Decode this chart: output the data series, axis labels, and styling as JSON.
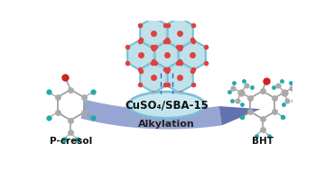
{
  "background_color": "#ffffff",
  "pcresol_label": "P-cresol",
  "bht_label": "BHT",
  "catalyst_label": "CuSO₄/SBA-15",
  "reaction_label": "Alkylation",
  "arrow_color_light": "#8899cc",
  "arrow_color_dark": "#5566aa",
  "ellipse_face": "#c5e8f0",
  "ellipse_edge": "#7bbdd4",
  "hex_face": "#b8dfe8",
  "hex_edge": "#6bbbd4",
  "dot_color": "#e04040",
  "dash_color": "#3366bb",
  "bond_color": "#999999",
  "carbon_color": "#aaaaaa",
  "teal_color": "#22aaaa",
  "red_color": "#cc2222",
  "label_color": "#111111"
}
